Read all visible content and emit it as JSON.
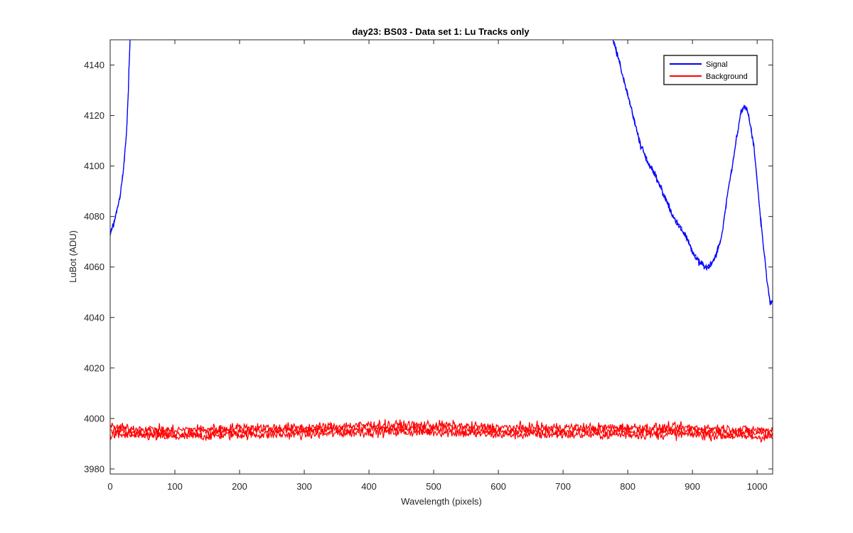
{
  "chart_data": {
    "type": "line",
    "title": "day23: BS03 - Data set 1: Lu Tracks only",
    "xlabel": "Wavelength (pixels)",
    "ylabel": "LuBot (ADU)",
    "xlim": [
      0,
      1024
    ],
    "ylim": [
      3978,
      4150
    ],
    "xticks": [
      0,
      100,
      200,
      300,
      400,
      500,
      600,
      700,
      800,
      900,
      1000
    ],
    "yticks": [
      3980,
      4000,
      4020,
      4040,
      4060,
      4080,
      4100,
      4120,
      4140
    ],
    "xtick_labels": [
      "0",
      "100",
      "200",
      "300",
      "400",
      "500",
      "600",
      "700",
      "800",
      "900",
      "1000"
    ],
    "ytick_labels": [
      "3980",
      "4000",
      "4020",
      "4040",
      "4060",
      "4080",
      "4100",
      "4120",
      "4140"
    ],
    "grid": false,
    "legend_position": "top-right",
    "series": [
      {
        "name": "Signal",
        "color": "#0000ff",
        "noise": 1.2,
        "x": [
          0,
          5,
          10,
          15,
          20,
          25,
          28,
          30,
          31,
          775,
          780,
          790,
          800,
          810,
          820,
          830,
          840,
          850,
          860,
          870,
          880,
          890,
          900,
          910,
          920,
          926,
          935,
          945,
          955,
          965,
          975,
          980,
          985,
          995,
          1005,
          1015,
          1020,
          1024
        ],
        "y": [
          4073,
          4077,
          4082,
          4088,
          4097,
          4112,
          4130,
          4145,
          4152,
          4152,
          4148,
          4138,
          4128,
          4118,
          4108,
          4102,
          4098,
          4092,
          4086,
          4080,
          4076,
          4072,
          4066,
          4062,
          4060,
          4060,
          4064,
          4072,
          4090,
          4106,
          4121,
          4124,
          4122,
          4108,
          4080,
          4055,
          4046,
          4046
        ]
      },
      {
        "name": "Background",
        "color": "#ff0000",
        "noise": 1.8,
        "x": [
          0,
          100,
          200,
          300,
          400,
          500,
          600,
          700,
          800,
          900,
          1000,
          1024
        ],
        "y": [
          3995,
          3994,
          3995,
          3995,
          3996,
          3996,
          3995,
          3995,
          3995,
          3995,
          3994,
          3994
        ]
      }
    ]
  }
}
